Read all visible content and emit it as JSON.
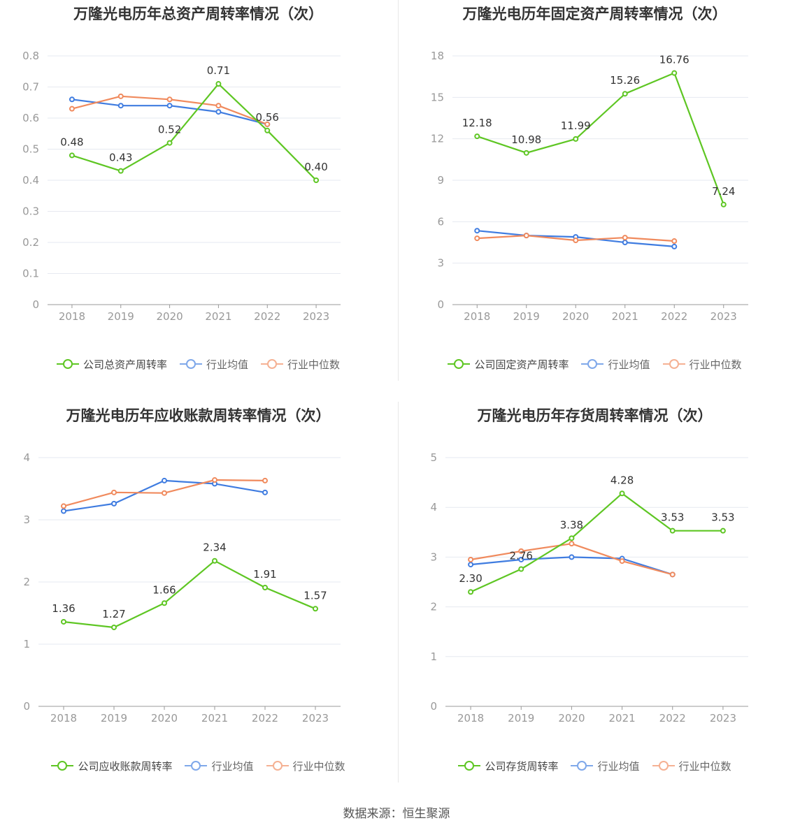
{
  "source_text": "数据来源：恒生聚源",
  "colors": {
    "company": "#5ec623",
    "avg": "#3f7ce0",
    "median": "#f08a5d",
    "grid": "#e6e9f0",
    "axis": "#999999",
    "tick": "#999999",
    "label": "#333333"
  },
  "chart_data": [
    {
      "type": "line",
      "title": "万隆光电历年总资产周转率情况（次）",
      "categories": [
        "2018",
        "2019",
        "2020",
        "2021",
        "2022",
        "2023"
      ],
      "yticks": [
        "0",
        "0.1",
        "0.2",
        "0.3",
        "0.4",
        "0.5",
        "0.6",
        "0.7",
        "0.8"
      ],
      "ylim": [
        0,
        0.8
      ],
      "grid": true,
      "legend": "bottom",
      "series": [
        {
          "name": "公司总资产周转率",
          "role": "company",
          "values": [
            0.48,
            0.43,
            0.52,
            0.71,
            0.56,
            0.4
          ],
          "labels": [
            "0.48",
            "0.43",
            "0.52",
            "0.71",
            "0.56",
            "0.40"
          ]
        },
        {
          "name": "行业均值",
          "role": "avg",
          "values": [
            0.66,
            0.64,
            0.64,
            0.62,
            0.58,
            null
          ]
        },
        {
          "name": "行业中位数",
          "role": "median",
          "values": [
            0.63,
            0.67,
            0.66,
            0.64,
            0.58,
            null
          ]
        }
      ]
    },
    {
      "type": "line",
      "title": "万隆光电历年固定资产周转率情况（次）",
      "categories": [
        "2018",
        "2019",
        "2020",
        "2021",
        "2022",
        "2023"
      ],
      "yticks": [
        "0",
        "3",
        "6",
        "9",
        "12",
        "15",
        "18"
      ],
      "ylim": [
        0,
        18
      ],
      "grid": true,
      "legend": "bottom",
      "series": [
        {
          "name": "公司固定资产周转率",
          "role": "company",
          "values": [
            12.18,
            10.98,
            11.99,
            15.26,
            16.76,
            7.24
          ],
          "labels": [
            "12.18",
            "10.98",
            "11.99",
            "15.26",
            "16.76",
            "7.24"
          ]
        },
        {
          "name": "行业均值",
          "role": "avg",
          "values": [
            5.35,
            5.0,
            4.9,
            4.5,
            4.2,
            null
          ]
        },
        {
          "name": "行业中位数",
          "role": "median",
          "values": [
            4.8,
            5.0,
            4.65,
            4.85,
            4.6,
            null
          ]
        }
      ]
    },
    {
      "type": "line",
      "title": "万隆光电历年应收账款周转率情况（次）",
      "categories": [
        "2018",
        "2019",
        "2020",
        "2021",
        "2022",
        "2023"
      ],
      "yticks": [
        "0",
        "1",
        "2",
        "3",
        "4"
      ],
      "ylim": [
        0,
        4
      ],
      "grid": true,
      "legend": "bottom",
      "series": [
        {
          "name": "公司应收账款周转率",
          "role": "company",
          "values": [
            1.36,
            1.27,
            1.66,
            2.34,
            1.91,
            1.57
          ],
          "labels": [
            "1.36",
            "1.27",
            "1.66",
            "2.34",
            "1.91",
            "1.57"
          ]
        },
        {
          "name": "行业均值",
          "role": "avg",
          "values": [
            3.14,
            3.26,
            3.63,
            3.58,
            3.44,
            null
          ]
        },
        {
          "name": "行业中位数",
          "role": "median",
          "values": [
            3.22,
            3.44,
            3.43,
            3.64,
            3.63,
            null
          ]
        }
      ]
    },
    {
      "type": "line",
      "title": "万隆光电历年存货周转率情况（次）",
      "categories": [
        "2018",
        "2019",
        "2020",
        "2021",
        "2022",
        "2023"
      ],
      "yticks": [
        "0",
        "1",
        "2",
        "3",
        "4",
        "5"
      ],
      "ylim": [
        0,
        5
      ],
      "grid": true,
      "legend": "bottom",
      "series": [
        {
          "name": "公司存货周转率",
          "role": "company",
          "values": [
            2.3,
            2.76,
            3.38,
            4.28,
            3.53,
            3.53
          ],
          "labels": [
            "2.30",
            "2.76",
            "3.38",
            "4.28",
            "3.53",
            "3.53"
          ]
        },
        {
          "name": "行业均值",
          "role": "avg",
          "values": [
            2.85,
            2.95,
            3.0,
            2.97,
            2.65,
            null
          ]
        },
        {
          "name": "行业中位数",
          "role": "median",
          "values": [
            2.95,
            3.12,
            3.27,
            2.92,
            2.65,
            null
          ]
        }
      ]
    }
  ]
}
